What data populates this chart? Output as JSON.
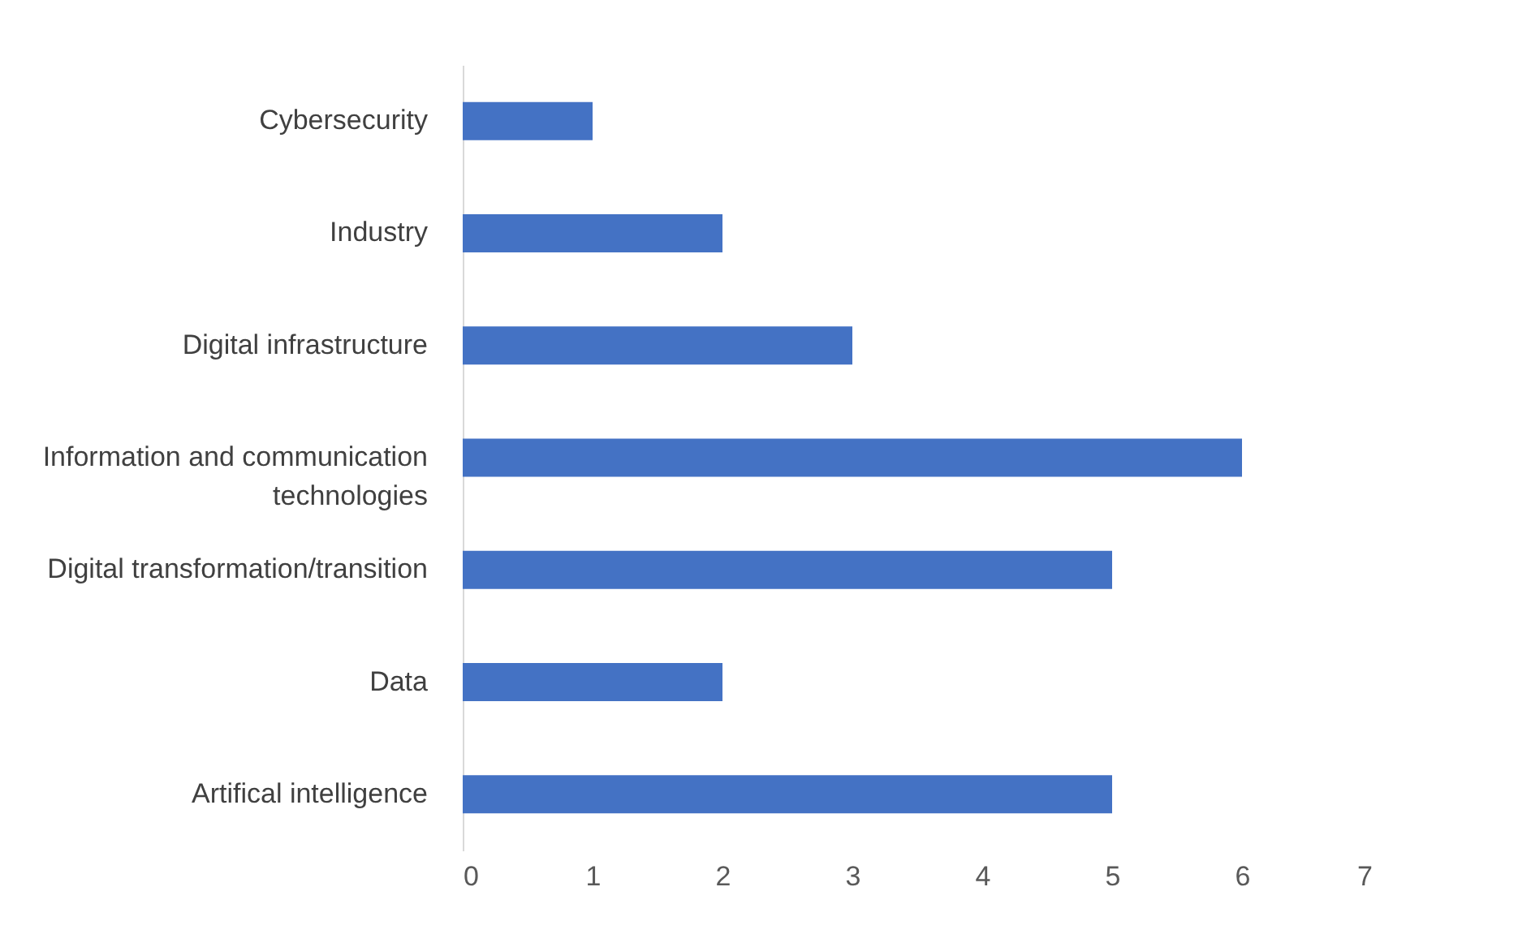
{
  "chart_data": {
    "type": "bar",
    "orientation": "horizontal",
    "categories": [
      "Cybersecurity",
      "Industry",
      "Digital infrastructure",
      "Information and communication technologies",
      "Digital transformation/transition",
      "Data",
      "Artifical intelligence"
    ],
    "values": [
      1,
      2,
      3,
      6,
      5,
      2,
      5
    ],
    "color": "#4472c4",
    "xlim": [
      0,
      7
    ],
    "xticks": [
      0,
      1,
      2,
      3,
      4,
      5,
      6,
      7
    ],
    "grid": false
  }
}
